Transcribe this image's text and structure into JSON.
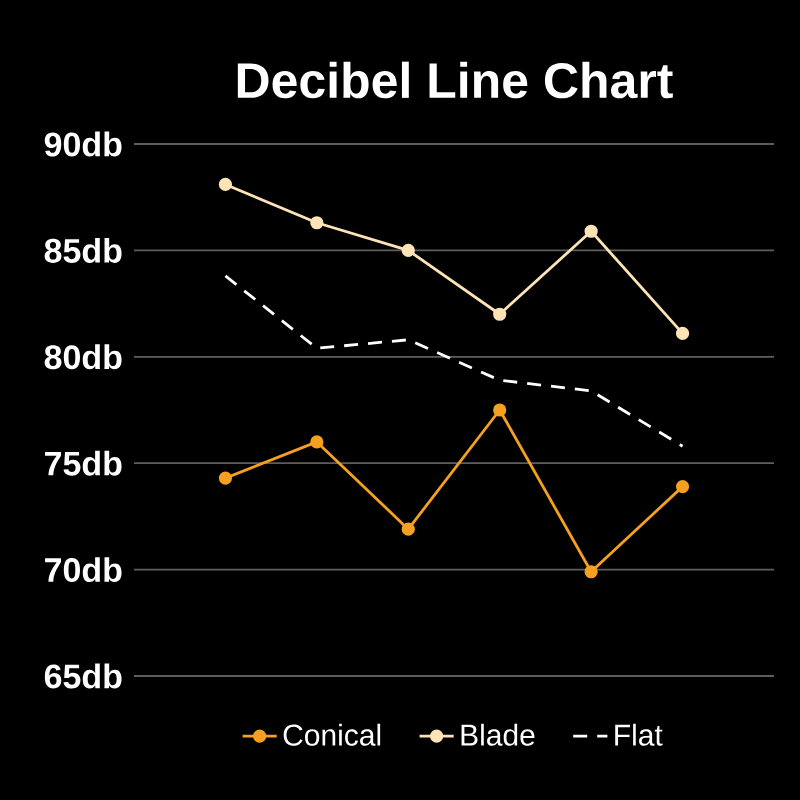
{
  "chart_data": {
    "type": "line",
    "title": "Decibel Line Chart",
    "categories": [
      null,
      null,
      null,
      null,
      null,
      null
    ],
    "series": [
      {
        "name": "Conical",
        "color": "#f5a020",
        "values": [
          74.3,
          76.0,
          71.9,
          77.5,
          69.9,
          73.9
        ]
      },
      {
        "name": "Blade",
        "color": "#fde3b5",
        "values": [
          88.1,
          86.3,
          85.0,
          82.0,
          85.9,
          81.1
        ]
      },
      {
        "name": "Flat",
        "color": "#ffffff",
        "values": [
          83.8,
          80.4,
          80.8,
          78.9,
          78.4,
          75.8
        ],
        "marker": "none",
        "line_style": "dashed"
      }
    ],
    "ylim": [
      65,
      90
    ],
    "yticks": [
      {
        "value": 65,
        "label": "65db"
      },
      {
        "value": 70,
        "label": "70db"
      },
      {
        "value": 75,
        "label": "75db"
      },
      {
        "value": 80,
        "label": "80db"
      },
      {
        "value": 85,
        "label": "85db"
      },
      {
        "value": 90,
        "label": "90db"
      }
    ],
    "grid": "y",
    "legend": "bottom",
    "marker": "circle",
    "line_style": "solid"
  }
}
